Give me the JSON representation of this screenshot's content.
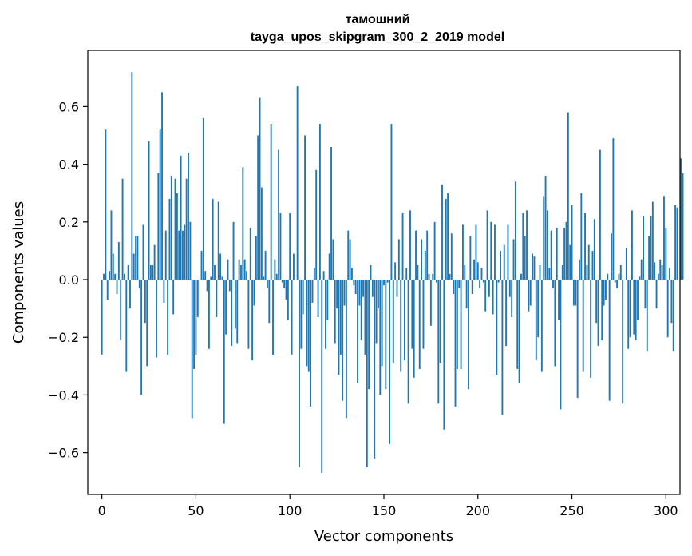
{
  "chart_data": {
    "type": "bar",
    "title": "тамошний",
    "subtitle": "tayga_upos_skipgram_300_2_2019 model",
    "xlabel": "Vector components",
    "ylabel": "Components values",
    "xlim": [
      -7.5,
      307.5
    ],
    "ylim": [
      -0.745,
      0.795
    ],
    "xticks": [
      0,
      50,
      100,
      150,
      200,
      250,
      300
    ],
    "xtick_labels": [
      "0",
      "50",
      "100",
      "150",
      "200",
      "250",
      "300"
    ],
    "yticks": [
      -0.6,
      -0.4,
      -0.2,
      0.0,
      0.2,
      0.4,
      0.6
    ],
    "ytick_labels": [
      "−0.6",
      "−0.4",
      "−0.2",
      "0.0",
      "0.2",
      "0.4",
      "0.6"
    ],
    "bar_color": "#1f77b4",
    "grid": false,
    "values": [
      -0.26,
      0.02,
      0.52,
      -0.07,
      0.03,
      0.24,
      0.09,
      0.02,
      -0.05,
      0.13,
      -0.21,
      0.35,
      0.02,
      -0.32,
      0.05,
      -0.1,
      0.72,
      0.09,
      0.15,
      0.15,
      -0.03,
      -0.4,
      0.19,
      -0.15,
      -0.3,
      0.48,
      0.05,
      0.05,
      0.12,
      -0.27,
      0.37,
      0.52,
      0.65,
      -0.08,
      0.17,
      -0.26,
      0.28,
      0.36,
      -0.12,
      0.35,
      0.3,
      0.17,
      0.43,
      0.17,
      0.19,
      0.35,
      0.44,
      0.2,
      -0.48,
      -0.31,
      -0.26,
      -0.13,
      0.0,
      0.1,
      0.56,
      0.03,
      -0.04,
      -0.24,
      0.01,
      0.28,
      0.05,
      -0.13,
      0.27,
      0.09,
      0.01,
      -0.5,
      -0.19,
      0.07,
      -0.04,
      -0.23,
      0.2,
      -0.17,
      -0.22,
      0.07,
      0.05,
      0.39,
      0.07,
      0.03,
      -0.24,
      0.18,
      -0.28,
      -0.09,
      0.15,
      0.5,
      0.63,
      0.32,
      0.01,
      0.1,
      -0.03,
      -0.15,
      0.54,
      -0.26,
      0.07,
      0.02,
      0.45,
      0.23,
      -0.01,
      -0.03,
      -0.07,
      -0.14,
      0.23,
      -0.26,
      0.09,
      0.0,
      0.67,
      -0.65,
      -0.24,
      -0.12,
      0.5,
      -0.3,
      -0.32,
      -0.44,
      -0.08,
      0.04,
      0.38,
      -0.13,
      0.54,
      -0.67,
      0.03,
      -0.24,
      -0.14,
      0.09,
      0.46,
      0.14,
      -0.22,
      -0.1,
      -0.33,
      -0.26,
      -0.42,
      -0.09,
      -0.48,
      0.17,
      0.14,
      0.04,
      -0.02,
      -0.05,
      -0.36,
      -0.09,
      -0.21,
      -0.06,
      -0.26,
      -0.65,
      -0.38,
      0.05,
      -0.06,
      -0.62,
      -0.22,
      -0.1,
      -0.4,
      -0.3,
      -0.02,
      -0.38,
      -0.01,
      -0.57,
      0.54,
      -0.29,
      0.06,
      -0.06,
      0.14,
      -0.32,
      0.23,
      -0.28,
      0.04,
      -0.43,
      0.24,
      -0.24,
      -0.34,
      0.17,
      0.05,
      -0.31,
      0.14,
      -0.24,
      0.1,
      0.17,
      0.02,
      -0.16,
      0.02,
      0.2,
      -0.01,
      -0.43,
      -0.29,
      0.33,
      -0.52,
      0.28,
      0.3,
      0.02,
      0.16,
      -0.05,
      -0.44,
      -0.31,
      -0.03,
      -0.31,
      0.19,
      0.05,
      -0.1,
      -0.38,
      0.15,
      -0.05,
      0.07,
      0.19,
      0.06,
      -0.03,
      0.04,
      -0.01,
      -0.11,
      0.24,
      -0.06,
      0.2,
      -0.12,
      0.19,
      -0.33,
      -0.01,
      0.1,
      -0.47,
      0.12,
      -0.23,
      0.19,
      -0.06,
      -0.13,
      0.14,
      0.34,
      -0.31,
      -0.36,
      0.02,
      0.23,
      0.15,
      0.24,
      -0.11,
      -0.09,
      0.09,
      0.08,
      -0.28,
      -0.2,
      0.05,
      -0.32,
      0.29,
      0.36,
      0.24,
      0.04,
      0.17,
      -0.03,
      -0.3,
      0.18,
      -0.14,
      -0.45,
      0.05,
      0.18,
      0.2,
      0.58,
      0.12,
      0.26,
      -0.09,
      -0.09,
      -0.41,
      0.07,
      0.3,
      -0.32,
      0.23,
      0.05,
      0.12,
      -0.34,
      0.1,
      0.21,
      -0.15,
      -0.23,
      0.45,
      -0.21,
      -0.09,
      -0.07,
      0.02,
      -0.42,
      0.16,
      0.49,
      -0.01,
      -0.03,
      0.02,
      0.05,
      -0.43,
      0.0,
      0.11,
      -0.24,
      -0.2,
      0.24,
      -0.19,
      -0.21,
      -0.14,
      0.01,
      0.07,
      0.22,
      -0.1,
      -0.25,
      0.15,
      0.22,
      0.27,
      0.06,
      -0.1,
      0.02,
      0.07,
      0.05,
      0.29,
      0.18,
      -0.2,
      0.04,
      -0.15,
      -0.25,
      0.26,
      0.25,
      0.0,
      0.42,
      0.37
    ]
  }
}
